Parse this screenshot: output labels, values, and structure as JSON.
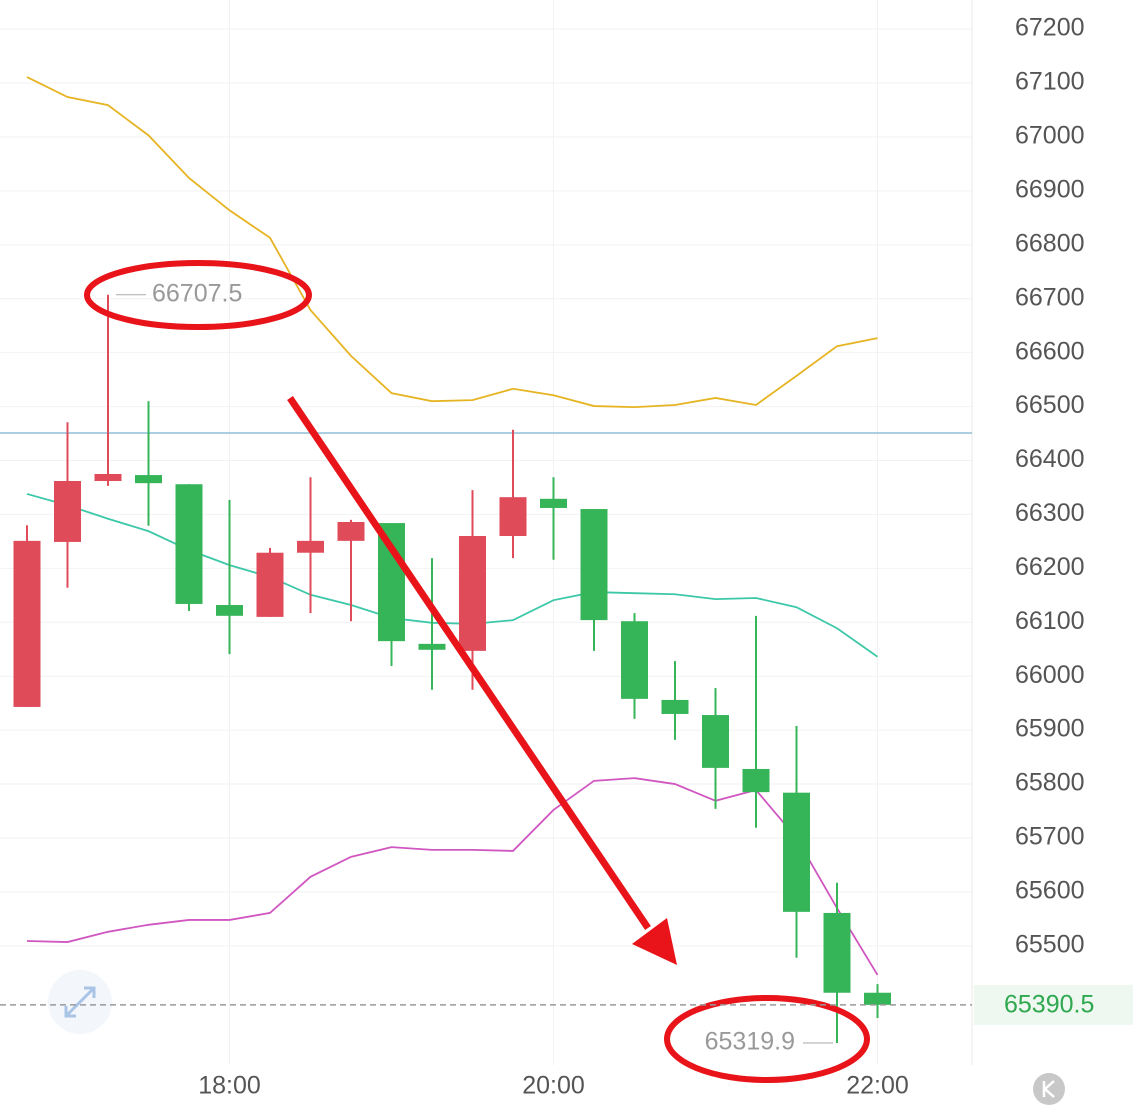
{
  "chart_data": {
    "type": "candlestick",
    "categories": [
      null,
      null,
      null,
      null,
      null,
      "18:00",
      null,
      null,
      null,
      null,
      null,
      null,
      null,
      "20:00",
      null,
      null,
      null,
      null,
      null,
      null,
      null,
      "22:00"
    ],
    "open": [
      65943,
      66249,
      66362,
      66373,
      66356,
      66132,
      66110,
      66229,
      66251,
      66284,
      66060,
      66047,
      66260,
      66329,
      66310,
      66102,
      65956,
      65928,
      65828,
      65784,
      65561,
      65413
    ],
    "high": [
      66280,
      66471,
      66707.5,
      66510,
      66356,
      66327,
      66238,
      66369,
      66290,
      66284,
      66219,
      66345,
      66457,
      66369,
      66310,
      66117,
      66028,
      65978,
      66112,
      65908,
      65617,
      65429
    ],
    "low": [
      65943,
      66164,
      66353,
      66279,
      66121,
      66041,
      66110,
      66117,
      66102,
      66019,
      65975,
      65975,
      66219,
      66216,
      66047,
      65921,
      65882,
      65754,
      65719,
      65478,
      65319.9,
      65366
    ],
    "close": [
      66251,
      66362,
      66375,
      66358,
      66134,
      66112,
      66229,
      66251,
      66286,
      66065,
      66049,
      66260,
      66332,
      66312,
      66104,
      65958,
      65930,
      65830,
      65785,
      65563,
      65413,
      65390.5
    ],
    "up_color": "#e04b5a",
    "down_color": "#35b558",
    "lines": [
      {
        "color": "#e6b422",
        "values": [
          67111,
          67074,
          67059,
          67003,
          66924,
          66864,
          66813,
          66679,
          66594,
          66525,
          66510,
          66512,
          66533,
          66521,
          66501,
          66499,
          66503,
          66516,
          66503,
          66557,
          66612,
          66627
        ]
      },
      {
        "color": "#3cc8a8",
        "values": [
          66338,
          66317,
          66292,
          66269,
          66234,
          66206,
          66184,
          66151,
          66132,
          66108,
          66099,
          66097,
          66104,
          66141,
          66156,
          66154,
          66152,
          66143,
          66145,
          66128,
          66089,
          66036
        ]
      },
      {
        "color": "#d056c0",
        "values": [
          65509,
          65507,
          65526,
          65539,
          65548,
          65548,
          65561,
          65628,
          65665,
          65683,
          65678,
          65678,
          65676,
          65752,
          65806,
          65811,
          65800,
          65769,
          65789,
          65700,
          65570,
          65446
        ]
      }
    ],
    "reference_line": {
      "value": 66451,
      "color": "#8fbfd6"
    },
    "current_price": 65390.5,
    "ylim": [
      65279,
      67254
    ],
    "yticks": [
      65500,
      65600,
      65700,
      65800,
      65900,
      66000,
      66100,
      66200,
      66300,
      66400,
      66500,
      66600,
      66700,
      66800,
      66900,
      67000,
      67100,
      67200
    ],
    "grid": true
  }
}
